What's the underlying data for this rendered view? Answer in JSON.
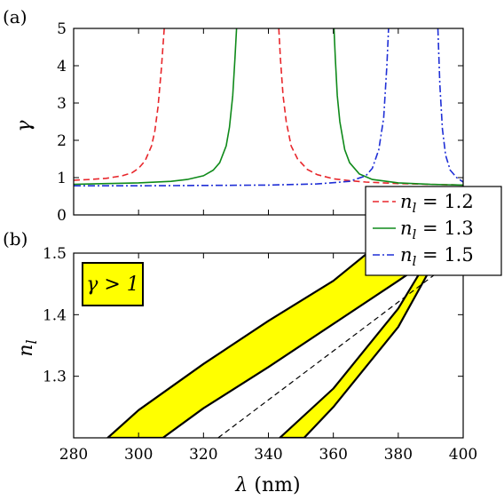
{
  "chart_data": [
    {
      "panel_label": "(a)",
      "type": "line",
      "ylabel": "γ",
      "xlim": [
        280,
        400
      ],
      "ylim": [
        0,
        5
      ],
      "yticks": [
        "0",
        "1",
        "2",
        "3",
        "4",
        "5"
      ],
      "legend_placement": "right, straddling both panels",
      "series": [
        {
          "name": "n_l = 1.2",
          "legend_label": "n_l = 1.2",
          "color": "#e8262b",
          "style": "dashed",
          "segments": [
            {
              "x": [
                280,
                285,
                290,
                295,
                298,
                300,
                302,
                304,
                305,
                306,
                307,
                307.5,
                307.9
              ],
              "y": [
                0.93,
                0.95,
                0.98,
                1.05,
                1.13,
                1.25,
                1.45,
                1.85,
                2.25,
                2.9,
                3.9,
                4.5,
                5.0
              ]
            },
            {
              "x": [
                343.2,
                343.7,
                344.5,
                345.5,
                347,
                349,
                352,
                355,
                360,
                365,
                370,
                380,
                390,
                400
              ],
              "y": [
                5.0,
                4.2,
                3.2,
                2.5,
                1.85,
                1.5,
                1.22,
                1.08,
                0.97,
                0.92,
                0.88,
                0.84,
                0.82,
                0.8
              ]
            }
          ]
        },
        {
          "name": "n_l = 1.3",
          "legend_label": "n_l = 1.3",
          "color": "#0f8a1a",
          "style": "solid",
          "segments": [
            {
              "x": [
                280,
                290,
                300,
                310,
                315,
                320,
                323,
                325,
                327,
                328,
                329,
                329.7,
                330.2
              ],
              "y": [
                0.82,
                0.84,
                0.86,
                0.9,
                0.95,
                1.05,
                1.2,
                1.4,
                1.85,
                2.35,
                3.2,
                4.2,
                5.0
              ]
            },
            {
              "x": [
                360.2,
                360.6,
                361.2,
                362,
                363.5,
                365,
                368,
                372,
                380,
                390,
                400
              ],
              "y": [
                5.0,
                4.2,
                3.2,
                2.5,
                1.75,
                1.4,
                1.1,
                0.95,
                0.86,
                0.82,
                0.8
              ]
            }
          ]
        },
        {
          "name": "n_l = 1.5",
          "legend_label": "n_l = 1.5",
          "color": "#1f2fd6",
          "style": "dashdot",
          "segments": [
            {
              "x": [
                280,
                300,
                320,
                340,
                355,
                365,
                370,
                372,
                374,
                375.5,
                376.5,
                377
              ],
              "y": [
                0.78,
                0.78,
                0.79,
                0.8,
                0.83,
                0.9,
                1.05,
                1.25,
                1.75,
                2.6,
                4.0,
                5.0
              ]
            },
            {
              "x": [
                392.2,
                392.8,
                393.6,
                394.6,
                396,
                398,
                400
              ],
              "y": [
                5.0,
                3.5,
                2.3,
                1.6,
                1.2,
                1.0,
                0.88
              ]
            }
          ]
        }
      ]
    },
    {
      "panel_label": "(b)",
      "type": "area",
      "xlabel": "λ (nm)",
      "ylabel": "n_l",
      "xlim": [
        280,
        400
      ],
      "ylim": [
        1.2,
        1.5
      ],
      "xticks": [
        "280",
        "300",
        "320",
        "340",
        "360",
        "380",
        "400"
      ],
      "yticks": [
        "1.3",
        "1.4",
        "1.5"
      ],
      "annotation": "γ > 1",
      "regions": [
        {
          "fill": "#ffff00",
          "upper_edge": {
            "x": [
              290.5,
              300,
              320,
              340,
              360,
              370.5
            ],
            "y": [
              1.2,
              1.245,
              1.32,
              1.39,
              1.455,
              1.5
            ]
          },
          "lower_edge": {
            "x": [
              307.5,
              320,
              340,
              360,
              380,
              392.5
            ],
            "y": [
              1.2,
              1.248,
              1.315,
              1.385,
              1.455,
              1.5
            ]
          }
        },
        {
          "fill": "#ffff00",
          "upper_edge": {
            "x": [
              343.5,
              360,
              380,
              388
            ],
            "y": [
              1.2,
              1.28,
              1.41,
              1.48
            ]
          },
          "lower_edge": {
            "x": [
              351,
              360,
              380,
              390.5
            ],
            "y": [
              1.2,
              1.25,
              1.38,
              1.48
            ]
          }
        }
      ],
      "reference_line": {
        "style": "dashed",
        "x": [
          324.5,
          400
        ],
        "y": [
          1.2,
          1.5
        ]
      }
    }
  ]
}
